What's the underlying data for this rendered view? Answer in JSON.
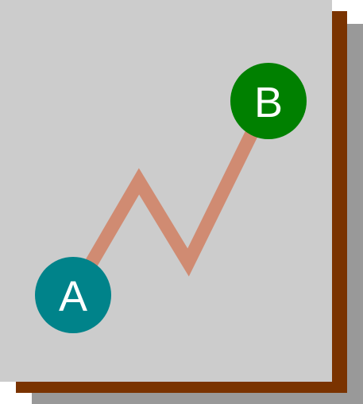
{
  "icon": {
    "name": "path-from-a-to-b-diagram",
    "colors": {
      "card": "#cccccc",
      "shadow_gray": "#999999",
      "shadow_brown": "#7a3300",
      "path": "#d08b72",
      "node_start": "#00838a",
      "node_end": "#008000",
      "label": "#ffffff"
    },
    "nodes": {
      "start": {
        "label": "A"
      },
      "end": {
        "label": "B"
      }
    }
  }
}
